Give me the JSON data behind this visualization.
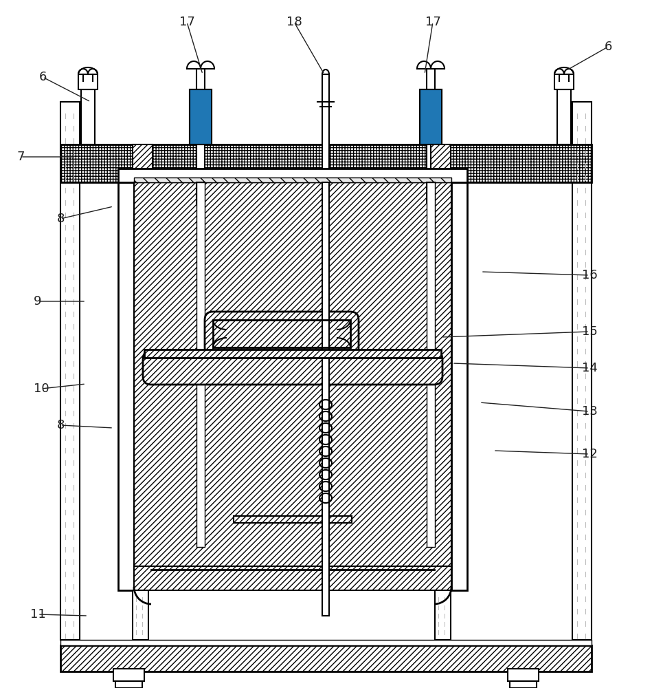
{
  "bg_color": "#ffffff",
  "lc": "#000000",
  "gray_hatch": "#999999",
  "lw_main": 1.5,
  "lw_thick": 2.0,
  "font_size": 13,
  "label_color": "#222222",
  "labels": [
    [
      "6",
      62,
      112
    ],
    [
      "6",
      885,
      68
    ],
    [
      "7",
      30,
      228
    ],
    [
      "8",
      88,
      318
    ],
    [
      "8",
      88,
      618
    ],
    [
      "9",
      55,
      438
    ],
    [
      "10",
      60,
      565
    ],
    [
      "11",
      55,
      893
    ],
    [
      "12",
      858,
      660
    ],
    [
      "13",
      858,
      598
    ],
    [
      "14",
      858,
      535
    ],
    [
      "15",
      858,
      482
    ],
    [
      "16",
      858,
      400
    ],
    [
      "17",
      272,
      32
    ],
    [
      "17",
      630,
      32
    ],
    [
      "18",
      428,
      32
    ]
  ],
  "arrows": [
    [
      62,
      112,
      132,
      148
    ],
    [
      885,
      68,
      825,
      102
    ],
    [
      30,
      228,
      110,
      228
    ],
    [
      88,
      318,
      165,
      300
    ],
    [
      88,
      618,
      165,
      622
    ],
    [
      55,
      438,
      125,
      438
    ],
    [
      60,
      565,
      125,
      558
    ],
    [
      55,
      893,
      128,
      895
    ],
    [
      858,
      660,
      718,
      655
    ],
    [
      858,
      598,
      698,
      585
    ],
    [
      858,
      535,
      658,
      528
    ],
    [
      858,
      482,
      642,
      490
    ],
    [
      858,
      400,
      700,
      395
    ],
    [
      272,
      32,
      295,
      108
    ],
    [
      630,
      32,
      618,
      108
    ],
    [
      428,
      32,
      472,
      108
    ]
  ]
}
